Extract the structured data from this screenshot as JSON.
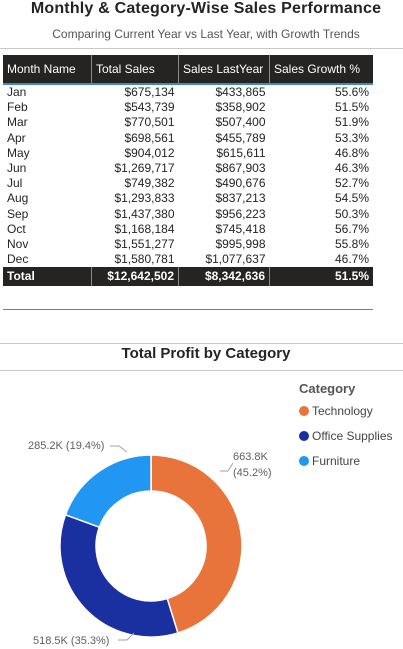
{
  "header": {
    "title": "Monthly & Category-Wise Sales Performance",
    "subtitle": "Comparing Current Year vs Last Year, with Growth Trends"
  },
  "table": {
    "columns": [
      "Month Name",
      "Total Sales",
      "Sales LastYear",
      "Sales Growth %"
    ],
    "rows": [
      [
        "Jan",
        "$675,134",
        "$433,865",
        "55.6%"
      ],
      [
        "Feb",
        "$543,739",
        "$358,902",
        "51.5%"
      ],
      [
        "Mar",
        "$770,501",
        "$507,400",
        "51.9%"
      ],
      [
        "Apr",
        "$698,561",
        "$455,789",
        "53.3%"
      ],
      [
        "May",
        "$904,012",
        "$615,611",
        "46.8%"
      ],
      [
        "Jun",
        "$1,269,717",
        "$867,903",
        "46.3%"
      ],
      [
        "Jul",
        "$749,382",
        "$490,676",
        "52.7%"
      ],
      [
        "Aug",
        "$1,293,833",
        "$837,213",
        "54.5%"
      ],
      [
        "Sep",
        "$1,437,380",
        "$956,223",
        "50.3%"
      ],
      [
        "Oct",
        "$1,168,184",
        "$745,418",
        "56.7%"
      ],
      [
        "Nov",
        "$1,551,277",
        "$995,998",
        "55.8%"
      ],
      [
        "Dec",
        "$1,580,781",
        "$1,077,637",
        "46.7%"
      ]
    ],
    "total": [
      "Total",
      "$12,642,502",
      "$8,342,636",
      "51.5%"
    ]
  },
  "profit_chart": {
    "title": "Total Profit by Category",
    "legend_title": "Category",
    "chart_data": {
      "type": "pie",
      "title": "Total Profit by Category",
      "categories": [
        "Technology",
        "Office Supplies",
        "Furniture"
      ],
      "values": [
        663.8,
        518.5,
        285.2
      ],
      "percents": [
        45.2,
        35.3,
        19.4
      ],
      "labels": [
        "663.8K",
        "518.5K (35.3%)",
        "285.2K (19.4%)"
      ],
      "label_percent_tech": "(45.2%)",
      "colors": [
        "#e8743b",
        "#1a2fa0",
        "#2196f3"
      ],
      "legend_position": "top-right"
    }
  }
}
